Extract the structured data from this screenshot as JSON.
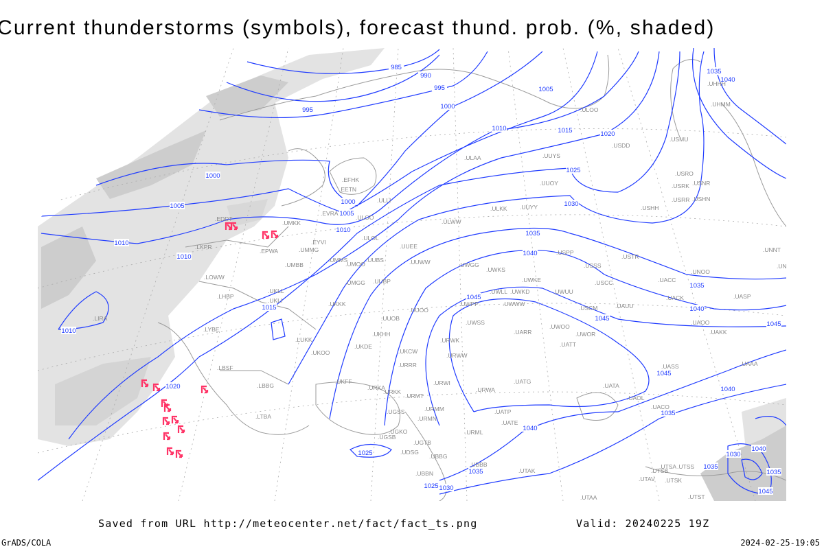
{
  "title": "Current thunderstorms (symbols), forecast thund. prob. (%, shaded)",
  "footer": {
    "saved_from": "Saved from URL http://meteocenter.net/fact/fact_ts.png",
    "valid": "Valid: 20240225 19Z",
    "software": "GrADS/COLA",
    "generated": "2024-02-25-19:05"
  },
  "colors": {
    "isobar": "#1f3bff",
    "thunderstorm_symbol": "#ff3366",
    "shading_light": "#e3e3e3",
    "shading_dark": "#cdcdcd",
    "coastline": "#9a9a9a"
  },
  "map": {
    "isobar_labels": [
      "985",
      "990",
      "995",
      "1000",
      "1005",
      "995",
      "1010",
      "1015",
      "1020",
      "1025",
      "1030",
      "1035",
      "1040",
      "1045",
      "1045",
      "1045",
      "1045",
      "1040",
      "1040",
      "1035",
      "1040",
      "1035",
      "1035",
      "1040",
      "1000",
      "1005",
      "1000",
      "1005",
      "1010",
      "1010",
      "1010",
      "1015",
      "1010",
      "1020",
      "1025",
      "1025",
      "1030",
      "1035",
      "1030",
      "1035",
      "1040",
      "1035",
      "1045"
    ],
    "stations": [
      "ULOO",
      "USDD",
      "USMU",
      "USRO",
      "USRK",
      "USNR",
      "USRR",
      "USHN",
      "USHH",
      "UUYY",
      "ULKK",
      "UUYS",
      "ULAA",
      "EFHK",
      "EETN",
      "ULLI",
      "ULOO",
      "EVRA",
      "UMKK",
      "EYVI",
      "EPWA",
      "UMMG",
      "UMBB",
      "UMMS",
      "UMOO",
      "UUBS",
      "UUEE",
      "ULWW",
      "UUWW",
      "UWGG",
      "UWKS",
      "UWKE",
      "UWKD",
      "UWUU",
      "USSS",
      "USPP",
      "USTR",
      "USCC",
      "UACC",
      "UNOO",
      "UACK",
      "UASP",
      "UNNT",
      "UNBB",
      "USCM",
      "UAUU",
      "UAKK",
      "UAOO",
      "UAAA",
      "UASS",
      "UATA",
      "UAOL",
      "UACO",
      "UTAV",
      "UTSA",
      "UTSB",
      "UTSS",
      "UTSK",
      "UTST",
      "UMGG",
      "UUBP",
      "UKKK",
      "UUOO",
      "UUOB",
      "UWPP",
      "UWLL",
      "UWWW",
      "UWSS",
      "UWOO",
      "UWOR",
      "UATT",
      "UARR",
      "URWK",
      "URWW",
      "UKCW",
      "URRR",
      "UKHH",
      "UKOO",
      "UKDE",
      "UKFF",
      "URKA",
      "URKK",
      "URWI",
      "URWA",
      "UATG",
      "URMT",
      "URMM",
      "URMN",
      "UGSS",
      "UGKO",
      "UGSB",
      "UDSG",
      "UBBG",
      "UBBN",
      "UBBB",
      "UTAK",
      "UTAA",
      "UATE",
      "UATP",
      "URML",
      "UGTB",
      "LUKK",
      "LBSF",
      "LBBG",
      "LYBE",
      "LHBP",
      "LTBA",
      "LKPR",
      "EDDT",
      "LOWW",
      "UKLL",
      "UKLI",
      "LIRA",
      "ULOL",
      "UUOY",
      "UHMM",
      "UHHH"
    ],
    "thunderstorm_count": 15
  }
}
